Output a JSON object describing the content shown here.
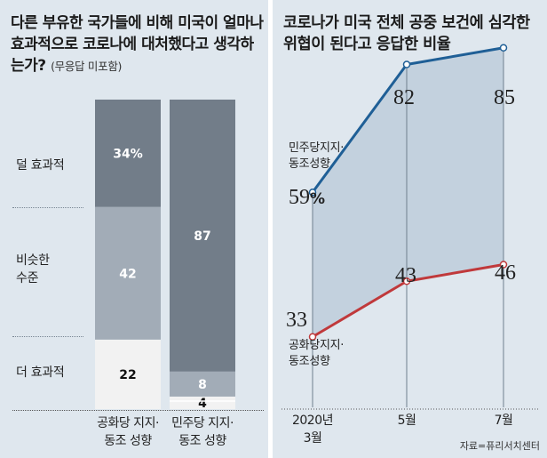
{
  "left": {
    "title": "다른 부유한 국가들에 비해 미국이 얼마나 효과적으로 코로나에 대처했다고 생각하는가?",
    "note": "(무응답 미포함)"
  },
  "right": {
    "title": "코로나가 미국 전체 공중 보건에 심각한 위협이 된다고 응답한 비율"
  },
  "footnote": "자료=퓨리서치센터",
  "colors": {
    "panel_bg": "#dfe7ee",
    "bar_less": "#727d89",
    "bar_similar": "#a2acb7",
    "bar_more": "#f2f2f2",
    "democrat_line": "#1f5f96",
    "republican_line": "#c0393b",
    "area_fill": "#c3d1de"
  },
  "chart_data": [
    {
      "type": "bar",
      "stacked": true,
      "categories": [
        "공화당 지지·동조 성향",
        "민주당 지지·동조 성향"
      ],
      "category_lines": [
        [
          "공화당 지지·",
          "동조 성향"
        ],
        [
          "민주당 지지·",
          "동조 성향"
        ]
      ],
      "series": [
        {
          "name": "더 효과적",
          "values": [
            22,
            4
          ],
          "labels": [
            "22",
            "4"
          ]
        },
        {
          "name": "비슷한 수준",
          "values": [
            42,
            8
          ],
          "labels": [
            "42",
            "8"
          ]
        },
        {
          "name": "덜 효과적",
          "values": [
            34,
            87
          ],
          "labels": [
            "34%",
            "87"
          ]
        }
      ],
      "row_labels": [
        {
          "lines": [
            "덜 효과적"
          ]
        },
        {
          "lines": [
            "비슷한",
            "수준"
          ]
        },
        {
          "lines": [
            "더 효과적"
          ]
        }
      ],
      "ylim": [
        0,
        100
      ]
    },
    {
      "type": "line",
      "x": [
        "2020년 3월",
        "5월",
        "7월"
      ],
      "x_lines": [
        [
          "2020년",
          "3월"
        ],
        [
          "5월"
        ],
        [
          "7월"
        ]
      ],
      "series": [
        {
          "name": "민주당지지·동조성향",
          "name_lines": [
            "민주당지지·",
            "동조성향"
          ],
          "values": [
            59,
            82,
            85
          ],
          "labels": [
            "59%",
            "82",
            "85"
          ]
        },
        {
          "name": "공화당지지·동조성향",
          "name_lines": [
            "공화당지지·",
            "동조성향"
          ],
          "values": [
            33,
            43,
            46
          ],
          "labels": [
            "33",
            "43",
            "46"
          ]
        }
      ],
      "ylim": [
        20,
        95
      ]
    }
  ]
}
